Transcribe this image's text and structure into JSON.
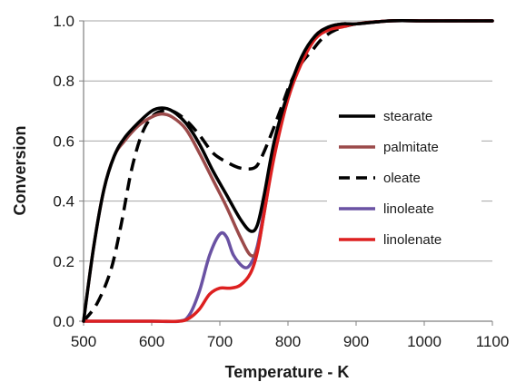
{
  "chart_data": {
    "type": "line",
    "title": "",
    "xlabel": "Temperature - K",
    "ylabel": "Conversion",
    "xlim": [
      500,
      1100
    ],
    "ylim": [
      0,
      1.0
    ],
    "x_ticks": [
      500,
      600,
      700,
      800,
      900,
      1000,
      1100
    ],
    "y_ticks": [
      0.0,
      0.2,
      0.4,
      0.6,
      0.8,
      1.0
    ],
    "x_tick_labels": [
      "500",
      "600",
      "700",
      "800",
      "900",
      "1000",
      "1100"
    ],
    "y_tick_labels": [
      "0.0",
      "0.2",
      "0.4",
      "0.6",
      "0.8",
      "1.0"
    ],
    "grid": "horizontal",
    "legend_position": "right",
    "series": [
      {
        "name": "stearate",
        "color": "#000000",
        "dash": "solid",
        "x": [
          500,
          515,
          530,
          545,
          560,
          580,
          600,
          615,
          630,
          650,
          670,
          690,
          710,
          730,
          745,
          755,
          765,
          780,
          800,
          820,
          840,
          860,
          880,
          900,
          950,
          1000,
          1050,
          1100
        ],
        "y": [
          0.0,
          0.25,
          0.44,
          0.55,
          0.61,
          0.66,
          0.7,
          0.71,
          0.7,
          0.66,
          0.59,
          0.5,
          0.42,
          0.34,
          0.3,
          0.32,
          0.42,
          0.6,
          0.76,
          0.88,
          0.95,
          0.98,
          0.99,
          0.99,
          1.0,
          1.0,
          1.0,
          1.0
        ]
      },
      {
        "name": "palmitate",
        "color": "#9b4a4a",
        "dash": "solid",
        "x": [
          500,
          515,
          530,
          545,
          560,
          580,
          600,
          615,
          630,
          650,
          670,
          690,
          710,
          730,
          745,
          755,
          765,
          780,
          800,
          820,
          840,
          860,
          880,
          900,
          950,
          1000,
          1050,
          1100
        ],
        "y": [
          0.0,
          0.25,
          0.44,
          0.55,
          0.6,
          0.65,
          0.68,
          0.69,
          0.68,
          0.64,
          0.56,
          0.47,
          0.38,
          0.28,
          0.22,
          0.24,
          0.36,
          0.56,
          0.74,
          0.87,
          0.95,
          0.98,
          0.99,
          0.99,
          1.0,
          1.0,
          1.0,
          1.0
        ]
      },
      {
        "name": "oleate",
        "color": "#000000",
        "dash": "dashed",
        "x": [
          500,
          520,
          540,
          555,
          570,
          585,
          600,
          615,
          630,
          650,
          670,
          690,
          710,
          730,
          750,
          760,
          775,
          790,
          805,
          820,
          835,
          850,
          870,
          900,
          950,
          1000,
          1050,
          1100
        ],
        "y": [
          0.0,
          0.06,
          0.17,
          0.32,
          0.5,
          0.62,
          0.68,
          0.7,
          0.7,
          0.67,
          0.62,
          0.56,
          0.53,
          0.51,
          0.51,
          0.54,
          0.62,
          0.71,
          0.8,
          0.86,
          0.9,
          0.94,
          0.97,
          0.99,
          1.0,
          1.0,
          1.0,
          1.0
        ]
      },
      {
        "name": "linoleate",
        "color": "#6a52a3",
        "dash": "solid",
        "x": [
          500,
          600,
          640,
          655,
          670,
          685,
          700,
          710,
          720,
          735,
          745,
          755,
          765,
          780,
          800,
          820,
          840,
          860,
          880,
          900,
          950,
          1000,
          1050,
          1100
        ],
        "y": [
          0.0,
          0.0,
          0.0,
          0.02,
          0.1,
          0.22,
          0.29,
          0.28,
          0.22,
          0.18,
          0.19,
          0.25,
          0.37,
          0.57,
          0.75,
          0.87,
          0.95,
          0.98,
          0.99,
          0.99,
          1.0,
          1.0,
          1.0,
          1.0
        ]
      },
      {
        "name": "linolenate",
        "color": "#dd2020",
        "dash": "solid",
        "x": [
          500,
          600,
          640,
          655,
          670,
          685,
          700,
          715,
          730,
          745,
          755,
          765,
          780,
          800,
          820,
          840,
          860,
          880,
          900,
          950,
          1000,
          1050,
          1100
        ],
        "y": [
          0.0,
          0.0,
          0.0,
          0.01,
          0.04,
          0.09,
          0.11,
          0.11,
          0.12,
          0.16,
          0.23,
          0.36,
          0.55,
          0.74,
          0.86,
          0.94,
          0.97,
          0.98,
          0.99,
          1.0,
          1.0,
          1.0,
          1.0
        ]
      }
    ]
  }
}
